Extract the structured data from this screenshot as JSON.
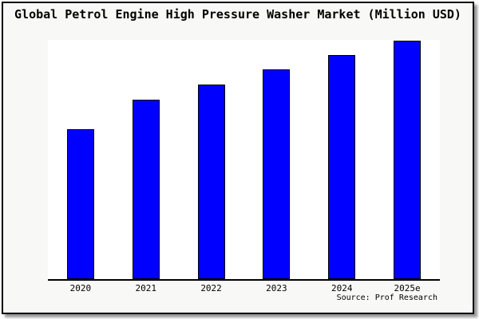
{
  "title": "Global Petrol Engine High Pressure Washer Market (Million USD)",
  "source": "Source: Prof Research",
  "colors": {
    "bar_fill": "#0000fe",
    "bar_border": "#000000",
    "canvas_background": "#f8f8f7",
    "plot_background": "#ffffff",
    "axis": "#000000",
    "frame_border": "#000000",
    "text": "#000000"
  },
  "chart_data": {
    "type": "bar",
    "title": "Global Petrol Engine High Pressure Washer Market (Million USD)",
    "categories": [
      "2020",
      "2021",
      "2022",
      "2023",
      "2024",
      "2025e"
    ],
    "values": [
      62.7,
      75.0,
      81.3,
      87.7,
      93.7,
      99.7
    ],
    "xlabel": "",
    "ylabel": "",
    "ylim": [
      0,
      100
    ],
    "grid": false,
    "legend": false,
    "y_axis_labels_visible": false,
    "annotations": [
      "Source: Prof Research"
    ]
  }
}
